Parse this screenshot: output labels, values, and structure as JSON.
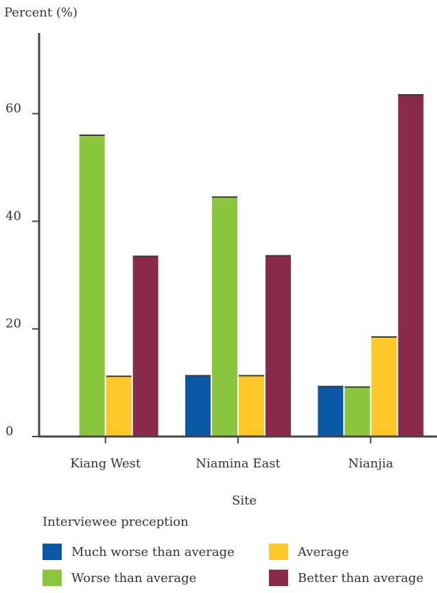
{
  "chart_data": {
    "type": "bar",
    "ylabel": "Percent (%)",
    "xlabel": "Site",
    "ylim": [
      0,
      75
    ],
    "yticks": [
      0,
      20,
      40,
      60
    ],
    "categories": [
      "Kiang West",
      "Niamina East",
      "Nianjia"
    ],
    "series": [
      {
        "name": "Much worse than average",
        "color": "#0a58a6",
        "values": [
          0,
          11.3,
          9.3
        ]
      },
      {
        "name": "Worse than average",
        "color": "#8cc63f",
        "values": [
          56,
          44.5,
          9.2
        ]
      },
      {
        "name": "Average",
        "color": "#ffc629",
        "values": [
          11.2,
          11.3,
          18.5
        ]
      },
      {
        "name": "Better than average",
        "color": "#8a2a4c",
        "values": [
          33.5,
          33.6,
          63.5
        ]
      }
    ],
    "legend_title": "Interviewee preception",
    "legend_position": "bottom",
    "grid": false
  }
}
